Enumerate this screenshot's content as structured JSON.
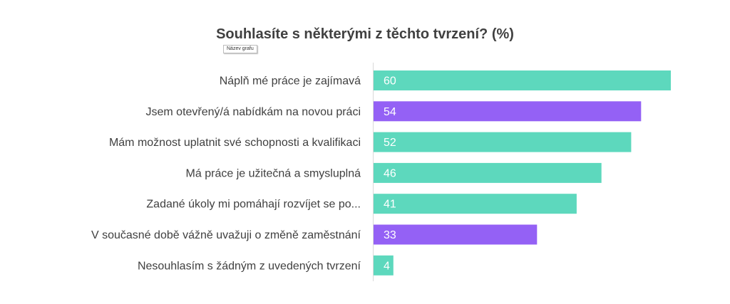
{
  "chart_title": "Souhlasíte s některými z těchto tvrzení? (%)",
  "tooltip": "Název grafu",
  "colors": {
    "teal": "#5dd8bd",
    "purple": "#9461f5",
    "axis": "#d9d9d9",
    "text": "#404040"
  },
  "chart_data": {
    "type": "bar",
    "orientation": "horizontal",
    "title": "Souhlasíte s některými z těchto tvrzení? (%)",
    "categories": [
      "Náplň mé práce je zajímavá",
      "Jsem otevřený/á nabídkám na novou práci",
      "Mám možnost uplatnit své schopnosti a kvalifikaci",
      "Má práce je užitečná a smysluplná",
      "Zadané úkoly mi pomáhají rozvíjet se po...",
      "V současné době vážně uvažuji o změně zaměstnání",
      "Nesouhlasím s žádným z uvedených tvrzení"
    ],
    "values": [
      60,
      54,
      52,
      46,
      41,
      33,
      4
    ],
    "bar_colors": [
      "teal",
      "purple",
      "teal",
      "teal",
      "teal",
      "purple",
      "teal"
    ],
    "data_labels": true,
    "grid": false,
    "legend": "none"
  }
}
